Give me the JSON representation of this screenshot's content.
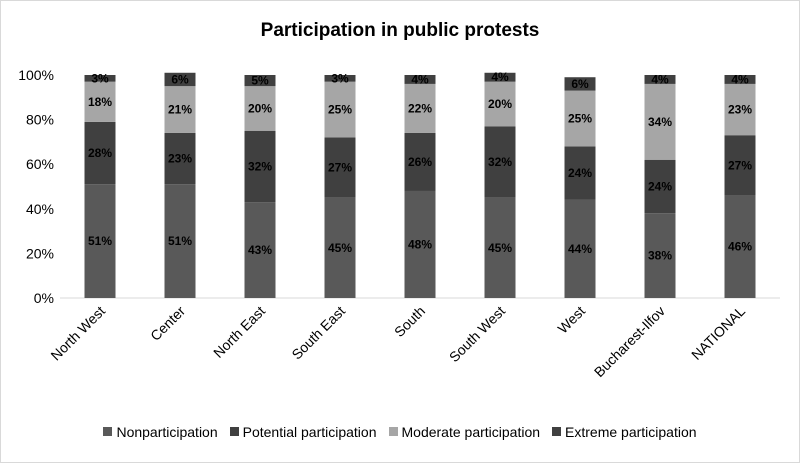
{
  "chart_data": {
    "type": "bar",
    "stacked": true,
    "title": "Participation in public protests",
    "categories": [
      "North West",
      "Center",
      "North East",
      "South East",
      "South",
      "South West",
      "West",
      "Bucharest-Ilfov",
      "NATIONAL"
    ],
    "series": [
      {
        "name": "Nonparticipation",
        "color": "#595959",
        "values": [
          51,
          51,
          43,
          45,
          48,
          45,
          44,
          38,
          46
        ],
        "labels": [
          "51%",
          "51%",
          "43%",
          "45%",
          "48%",
          "45%",
          "44%",
          "38%",
          "46%"
        ]
      },
      {
        "name": "Potential participation",
        "color": "#404040",
        "values": [
          28,
          23,
          32,
          27,
          26,
          32,
          24,
          24,
          27
        ],
        "labels": [
          "28%",
          "23%",
          "32%",
          "27%",
          "26%",
          "32%",
          "24%",
          "24%",
          "27%"
        ]
      },
      {
        "name": "Moderate participation",
        "color": "#a6a6a6",
        "values": [
          18,
          21,
          20,
          25,
          22,
          20,
          25,
          34,
          23
        ],
        "labels": [
          "18%",
          "21%",
          "20%",
          "25%",
          "22%",
          "20%",
          "25%",
          "34%",
          "23%"
        ]
      },
      {
        "name": "Extreme participation",
        "color": "#404040",
        "values": [
          3,
          6,
          5,
          3,
          4,
          4,
          6,
          4,
          4
        ],
        "labels": [
          "3%",
          "6%",
          "5%",
          "3%",
          "4%",
          "4%",
          "6%",
          "4%",
          "4%"
        ]
      }
    ],
    "ylim": [
      0,
      100
    ],
    "yticks": [
      0,
      20,
      40,
      60,
      80,
      100
    ],
    "ytick_labels": [
      "0%",
      "20%",
      "40%",
      "60%",
      "80%",
      "100%"
    ],
    "grid": false,
    "legend_position": "bottom"
  }
}
